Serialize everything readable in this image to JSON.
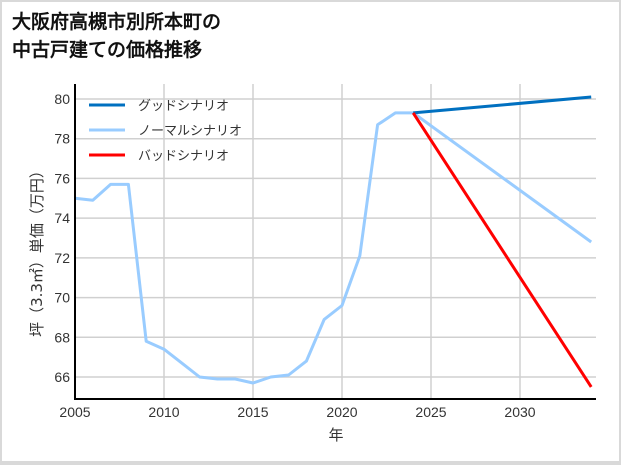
{
  "chart_data": {
    "type": "line",
    "title": "大阪府高槻市別所本町の中古戸建ての価格推移",
    "title_lines": [
      "大阪府高槻市別所本町の",
      "中古戸建ての価格推移"
    ],
    "xlabel": "年",
    "ylabel": "坪（3.3㎡）単価（万円）",
    "xlim": [
      2005,
      2034
    ],
    "ylim": [
      64.9,
      80.5
    ],
    "xticks": [
      2005,
      2010,
      2015,
      2020,
      2025,
      2030
    ],
    "yticks": [
      66,
      68,
      70,
      72,
      74,
      76,
      78,
      80
    ],
    "grid": true,
    "legend_position": "upper left",
    "series": [
      {
        "name": "グッドシナリオ",
        "color": "#0070c0",
        "x": [
          2024,
          2034
        ],
        "values": [
          79.3,
          80.1
        ]
      },
      {
        "name": "ノーマルシナリオ",
        "color": "#99ccff",
        "x": [
          2005,
          2006,
          2007,
          2008,
          2009,
          2010,
          2011,
          2012,
          2013,
          2014,
          2015,
          2016,
          2017,
          2018,
          2019,
          2020,
          2021,
          2022,
          2023,
          2024,
          2034
        ],
        "values": [
          75.0,
          74.9,
          75.7,
          75.7,
          67.8,
          67.4,
          66.7,
          66.0,
          65.9,
          65.9,
          65.7,
          66.0,
          66.1,
          66.8,
          68.9,
          69.6,
          72.1,
          78.7,
          79.3,
          79.3,
          72.8
        ]
      },
      {
        "name": "バッドシナリオ",
        "color": "#ff0000",
        "x": [
          2024,
          2034
        ],
        "values": [
          79.3,
          65.5
        ]
      }
    ]
  }
}
